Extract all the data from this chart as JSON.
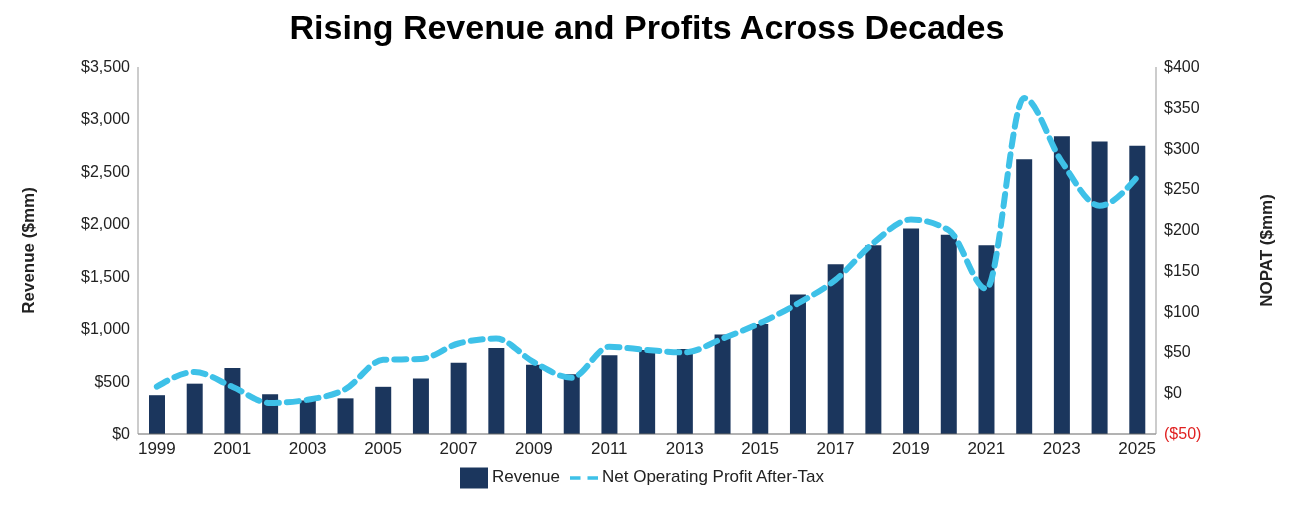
{
  "chart_data": {
    "type": "bar",
    "title": "Rising Revenue and Profits Across Decades",
    "ylabel": "Revenue ($mm)",
    "y2label": "NOPAT ($mm)",
    "categories": [
      "1999",
      null,
      "2001",
      null,
      "2003",
      null,
      "2005",
      null,
      "2007",
      null,
      "2009",
      null,
      "2011",
      null,
      "2013",
      null,
      "2015",
      null,
      "2017",
      null,
      "2019",
      null,
      "2021",
      null,
      "2023",
      null,
      "2025"
    ],
    "series": [
      {
        "name": "Revenue",
        "color": "#1b365d",
        "values": [
          370,
          480,
          630,
          380,
          320,
          340,
          450,
          530,
          680,
          820,
          660,
          570,
          750,
          800,
          810,
          950,
          1050,
          1330,
          1620,
          1800,
          1960,
          1900,
          1800,
          2620,
          2840,
          2790,
          2750
        ]
      },
      {
        "name": "Net Operating Profit After-Tax",
        "type": "line",
        "axis": "y2",
        "color": "#3ec1e8",
        "line_style": "dashed",
        "marker": "none",
        "values": [
          8,
          26,
          8,
          -12,
          -8,
          5,
          41,
          42,
          61,
          67,
          38,
          19,
          57,
          53,
          50,
          67,
          86,
          110,
          139,
          184,
          213,
          200,
          128,
          362,
          284,
          230,
          265
        ]
      }
    ],
    "ylim": [
      0,
      3500
    ],
    "yticks": [
      {
        "value": 0,
        "label": "$0"
      },
      {
        "value": 500,
        "label": "$500"
      },
      {
        "value": 1000,
        "label": "$1,000"
      },
      {
        "value": 1500,
        "label": "$1,500"
      },
      {
        "value": 2000,
        "label": "$2,000"
      },
      {
        "value": 2500,
        "label": "$2,500"
      },
      {
        "value": 3000,
        "label": "$3,000"
      },
      {
        "value": 3500,
        "label": "$3,500"
      }
    ],
    "y2lim": [
      -50,
      400
    ],
    "y2ticks": [
      {
        "value": -50,
        "label": "($50)"
      },
      {
        "value": 0,
        "label": "$0"
      },
      {
        "value": 50,
        "label": "$50"
      },
      {
        "value": 100,
        "label": "$100"
      },
      {
        "value": 150,
        "label": "$150"
      },
      {
        "value": 200,
        "label": "$200"
      },
      {
        "value": 250,
        "label": "$250"
      },
      {
        "value": 300,
        "label": "$300"
      },
      {
        "value": 350,
        "label": "$350"
      },
      {
        "value": 400,
        "label": "$400"
      }
    ],
    "grid": false,
    "legend": "bottom"
  }
}
